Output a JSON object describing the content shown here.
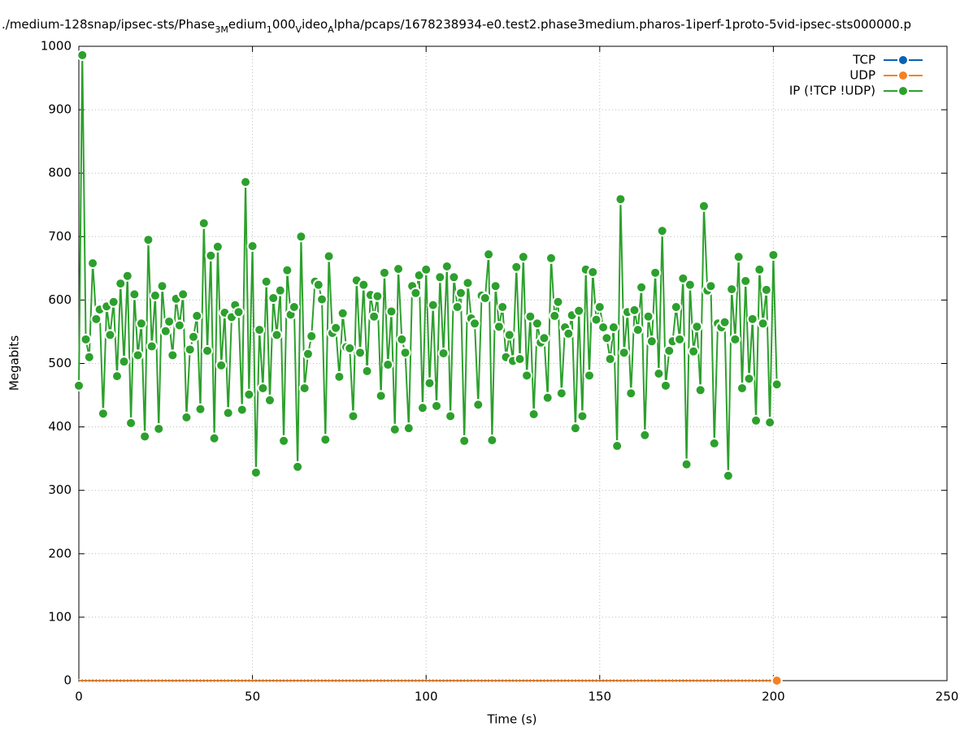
{
  "chart_data": {
    "type": "line",
    "title_parts": [
      {
        "text": "./medium-128snap/ipsec-sts/Phase"
      },
      {
        "text": "3M",
        "sub": true
      },
      {
        "text": "edium"
      },
      {
        "text": "1",
        "sub": true
      },
      {
        "text": "000"
      },
      {
        "text": "V",
        "sub": true
      },
      {
        "text": "ideo"
      },
      {
        "text": "A",
        "sub": true
      },
      {
        "text": "lpha/pcaps/1678238934-e0.test2.phase3medium.pharos-1iperf-1proto-5vid-ipsec-sts000000.p"
      }
    ],
    "xlabel": "Time (s)",
    "ylabel": "Megabits",
    "xlim": [
      0,
      250
    ],
    "xticks": [
      0,
      50,
      100,
      150,
      200,
      250
    ],
    "ylim": [
      0,
      1000
    ],
    "yticks": [
      0,
      100,
      200,
      300,
      400,
      500,
      600,
      700,
      800,
      900,
      1000
    ],
    "grid": true,
    "legend": "top-right",
    "x": [
      0,
      1,
      2,
      3,
      4,
      5,
      6,
      7,
      8,
      9,
      10,
      11,
      12,
      13,
      14,
      15,
      16,
      17,
      18,
      19,
      20,
      21,
      22,
      23,
      24,
      25,
      26,
      27,
      28,
      29,
      30,
      31,
      32,
      33,
      34,
      35,
      36,
      37,
      38,
      39,
      40,
      41,
      42,
      43,
      44,
      45,
      46,
      47,
      48,
      49,
      50,
      51,
      52,
      53,
      54,
      55,
      56,
      57,
      58,
      59,
      60,
      61,
      62,
      63,
      64,
      65,
      66,
      67,
      68,
      69,
      70,
      71,
      72,
      73,
      74,
      75,
      76,
      77,
      78,
      79,
      80,
      81,
      82,
      83,
      84,
      85,
      86,
      87,
      88,
      89,
      90,
      91,
      92,
      93,
      94,
      95,
      96,
      97,
      98,
      99,
      100,
      101,
      102,
      103,
      104,
      105,
      106,
      107,
      108,
      109,
      110,
      111,
      112,
      113,
      114,
      115,
      116,
      117,
      118,
      119,
      120,
      121,
      122,
      123,
      124,
      125,
      126,
      127,
      128,
      129,
      130,
      131,
      132,
      133,
      134,
      135,
      136,
      137,
      138,
      139,
      140,
      141,
      142,
      143,
      144,
      145,
      146,
      147,
      148,
      149,
      150,
      151,
      152,
      153,
      154,
      155,
      156,
      157,
      158,
      159,
      160,
      161,
      162,
      163,
      164,
      165,
      166,
      167,
      168,
      169,
      170,
      171,
      172,
      173,
      174,
      175,
      176,
      177,
      178,
      179,
      180,
      181,
      182,
      183,
      184,
      185,
      186,
      187,
      188,
      189,
      190,
      191,
      192,
      193,
      194,
      195,
      196,
      197,
      198,
      199,
      200,
      201
    ],
    "series": [
      {
        "name": "TCP",
        "color": "#0a62b0",
        "values": [
          0,
          0,
          0,
          0,
          0,
          0,
          0,
          0,
          0,
          0,
          0,
          0,
          0,
          0,
          0,
          0,
          0,
          0,
          0,
          0,
          0,
          0,
          0,
          0,
          0,
          0,
          0,
          0,
          0,
          0,
          0,
          0,
          0,
          0,
          0,
          0,
          0,
          0,
          0,
          0,
          0,
          0,
          0,
          0,
          0,
          0,
          0,
          0,
          0,
          0,
          0,
          0,
          0,
          0,
          0,
          0,
          0,
          0,
          0,
          0,
          0,
          0,
          0,
          0,
          0,
          0,
          0,
          0,
          0,
          0,
          0,
          0,
          0,
          0,
          0,
          0,
          0,
          0,
          0,
          0,
          0,
          0,
          0,
          0,
          0,
          0,
          0,
          0,
          0,
          0,
          0,
          0,
          0,
          0,
          0,
          0,
          0,
          0,
          0,
          0,
          0,
          0,
          0,
          0,
          0,
          0,
          0,
          0,
          0,
          0,
          0,
          0,
          0,
          0,
          0,
          0,
          0,
          0,
          0,
          0,
          0,
          0,
          0,
          0,
          0,
          0,
          0,
          0,
          0,
          0,
          0,
          0,
          0,
          0,
          0,
          0,
          0,
          0,
          0,
          0,
          0,
          0,
          0,
          0,
          0,
          0,
          0,
          0,
          0,
          0,
          0,
          0,
          0,
          0,
          0,
          0,
          0,
          0,
          0,
          0,
          0,
          0,
          0,
          0,
          0,
          0,
          0,
          0,
          0,
          0,
          0,
          0,
          0,
          0,
          0,
          0,
          0,
          0,
          0,
          0,
          0,
          0,
          0,
          0,
          0,
          0,
          0,
          0,
          0,
          0,
          0,
          0,
          0,
          0,
          0,
          0,
          0,
          0,
          0,
          0,
          0,
          0
        ]
      },
      {
        "name": "UDP",
        "color": "#f5821f",
        "values": [
          0,
          0,
          0,
          0,
          0,
          0,
          0,
          0,
          0,
          0,
          0,
          0,
          0,
          0,
          0,
          0,
          0,
          0,
          0,
          0,
          0,
          0,
          0,
          0,
          0,
          0,
          0,
          0,
          0,
          0,
          0,
          0,
          0,
          0,
          0,
          0,
          0,
          0,
          0,
          0,
          0,
          0,
          0,
          0,
          0,
          0,
          0,
          0,
          0,
          0,
          0,
          0,
          0,
          0,
          0,
          0,
          0,
          0,
          0,
          0,
          0,
          0,
          0,
          0,
          0,
          0,
          0,
          0,
          0,
          0,
          0,
          0,
          0,
          0,
          0,
          0,
          0,
          0,
          0,
          0,
          0,
          0,
          0,
          0,
          0,
          0,
          0,
          0,
          0,
          0,
          0,
          0,
          0,
          0,
          0,
          0,
          0,
          0,
          0,
          0,
          0,
          0,
          0,
          0,
          0,
          0,
          0,
          0,
          0,
          0,
          0,
          0,
          0,
          0,
          0,
          0,
          0,
          0,
          0,
          0,
          0,
          0,
          0,
          0,
          0,
          0,
          0,
          0,
          0,
          0,
          0,
          0,
          0,
          0,
          0,
          0,
          0,
          0,
          0,
          0,
          0,
          0,
          0,
          0,
          0,
          0,
          0,
          0,
          0,
          0,
          0,
          0,
          0,
          0,
          0,
          0,
          0,
          0,
          0,
          0,
          0,
          0,
          0,
          0,
          0,
          0,
          0,
          0,
          0,
          0,
          0,
          0,
          0,
          0,
          0,
          0,
          0,
          0,
          0,
          0,
          0,
          0,
          0,
          0,
          0,
          0,
          0,
          0,
          0,
          0,
          0,
          0,
          0,
          0,
          0,
          0,
          0,
          0,
          0,
          0,
          0,
          0
        ]
      },
      {
        "name": "IP (!TCP  !UDP)",
        "color": "#2ca02c",
        "values": [
          465,
          986,
          538,
          510,
          658,
          570,
          585,
          421,
          590,
          545,
          597,
          480,
          626,
          503,
          638,
          406,
          609,
          513,
          563,
          385,
          695,
          527,
          607,
          397,
          622,
          551,
          566,
          513,
          602,
          560,
          609,
          415,
          522,
          542,
          575,
          428,
          721,
          520,
          670,
          382,
          684,
          497,
          580,
          422,
          573,
          592,
          581,
          427,
          786,
          451,
          685,
          328,
          553,
          461,
          629,
          442,
          603,
          545,
          615,
          378,
          647,
          577,
          589,
          337,
          700,
          461,
          515,
          543,
          629,
          624,
          601,
          380,
          669,
          548,
          556,
          479,
          579,
          526,
          524,
          417,
          631,
          517,
          624,
          488,
          608,
          574,
          606,
          449,
          643,
          498,
          582,
          396,
          649,
          538,
          517,
          398,
          622,
          611,
          639,
          430,
          648,
          469,
          592,
          433,
          636,
          516,
          653,
          417,
          636,
          589,
          611,
          378,
          627,
          571,
          563,
          435,
          607,
          603,
          672,
          379,
          622,
          558,
          589,
          510,
          545,
          504,
          652,
          507,
          668,
          481,
          574,
          420,
          563,
          533,
          540,
          446,
          666,
          575,
          597,
          453,
          557,
          547,
          576,
          398,
          583,
          417,
          648,
          481,
          644,
          569,
          589,
          557,
          540,
          507,
          557,
          370,
          759,
          517,
          581,
          453,
          584,
          553,
          620,
          387,
          574,
          535,
          643,
          484,
          709,
          465,
          520,
          535,
          589,
          538,
          634,
          341,
          624,
          519,
          558,
          458,
          748,
          615,
          622,
          374,
          563,
          557,
          565,
          323,
          617,
          538,
          668,
          461,
          630,
          476,
          570,
          410,
          648,
          563,
          616,
          407,
          671,
          467
        ]
      }
    ]
  }
}
